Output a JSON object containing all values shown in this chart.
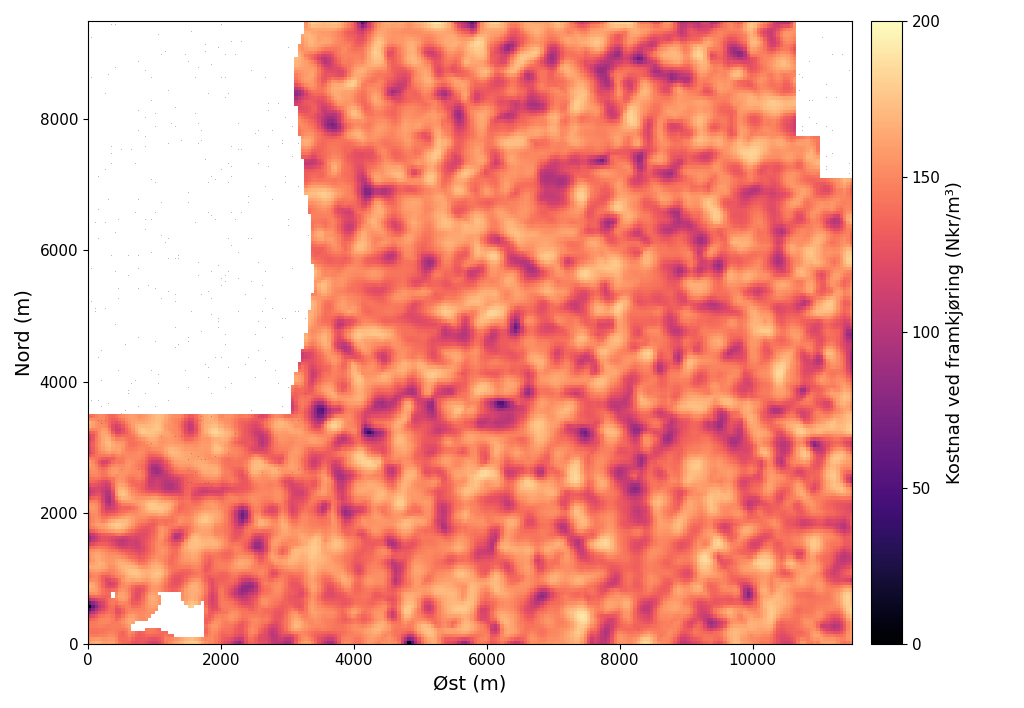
{
  "xlabel": "Øst (m)",
  "ylabel": "Nord (m)",
  "colorbar_label": "Kostnad ved framkjøring (Nkr/m³)",
  "xlim": [
    0,
    11500
  ],
  "ylim": [
    0,
    9500
  ],
  "xticks": [
    0,
    2000,
    4000,
    6000,
    8000,
    10000
  ],
  "yticks": [
    0,
    2000,
    4000,
    6000,
    8000
  ],
  "colorbar_ticks": [
    0,
    50,
    100,
    150,
    200
  ],
  "vmin": 0,
  "vmax": 200,
  "cmap": "magma",
  "figsize": [
    10.24,
    7.08
  ],
  "dpi": 100,
  "axis_label_fontsize": 14,
  "colorbar_label_fontsize": 13,
  "tick_fontsize": 11,
  "grid_nx": 230,
  "grid_ny": 190,
  "ylabel_x_offset": -0.01
}
